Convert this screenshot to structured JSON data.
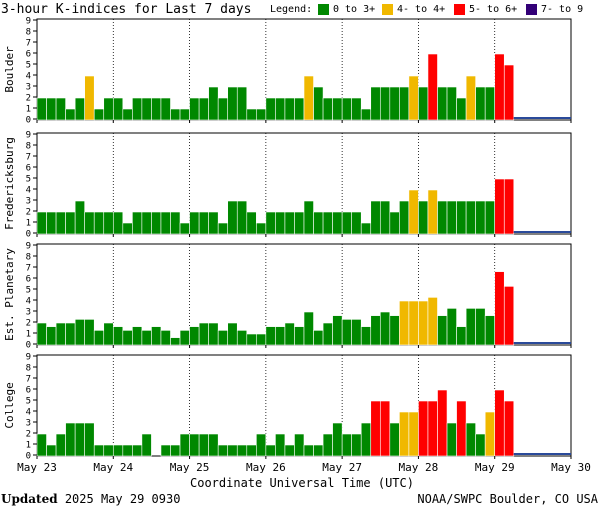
{
  "title": "3-hour K-indices for Last 7 days",
  "legend": {
    "label": "Legend:",
    "items": [
      {
        "label": "0 to 3+",
        "color": "#008800"
      },
      {
        "label": "4- to 4+",
        "color": "#f0b800"
      },
      {
        "label": "5- to 6+",
        "color": "#ff0000"
      },
      {
        "label": "7- to 9",
        "color": "#330077"
      }
    ]
  },
  "x_axis_title": "Coordinate Universal Time (UTC)",
  "footer": {
    "updated_label": "Updated",
    "updated_value": "2025 May 29 0930",
    "credit": "NOAA/SWPC Boulder, CO USA"
  },
  "chart_data": [
    {
      "type": "bar",
      "station": "Boulder",
      "ylim": [
        0,
        9
      ],
      "yticks": [
        "0",
        "1",
        "2",
        "3",
        "4",
        "5",
        "6",
        "7",
        "8",
        "9"
      ],
      "xticks": [
        "May 23",
        "May 24",
        "May 25",
        "May 26",
        "May 27",
        "May 28",
        "May 29",
        "May 30"
      ],
      "values": [
        2,
        2,
        2,
        1,
        2,
        4,
        1,
        2,
        2,
        1,
        2,
        2,
        2,
        2,
        1,
        1,
        2,
        2,
        3,
        2,
        3,
        3,
        1,
        1,
        2,
        2,
        2,
        2,
        4,
        3,
        2,
        2,
        2,
        2,
        1,
        3,
        3,
        3,
        3,
        4,
        3,
        6,
        3,
        3,
        2,
        4,
        3,
        3,
        6,
        5
      ]
    },
    {
      "type": "bar",
      "station": "Fredericksburg",
      "ylim": [
        0,
        9
      ],
      "yticks": [
        "0",
        "1",
        "2",
        "3",
        "4",
        "5",
        "6",
        "7",
        "8",
        "9"
      ],
      "xticks": [
        "May 23",
        "May 24",
        "May 25",
        "May 26",
        "May 27",
        "May 28",
        "May 29",
        "May 30"
      ],
      "values": [
        2,
        2,
        2,
        2,
        3,
        2,
        2,
        2,
        2,
        1,
        2,
        2,
        2,
        2,
        2,
        1,
        2,
        2,
        2,
        1,
        3,
        3,
        2,
        1,
        2,
        2,
        2,
        2,
        3,
        2,
        2,
        2,
        2,
        2,
        1,
        3,
        3,
        2,
        3,
        4,
        3,
        4,
        3,
        3,
        3,
        3,
        3,
        3,
        5,
        5
      ]
    },
    {
      "type": "bar",
      "station": "Est. Planetary",
      "ylim": [
        0,
        9
      ],
      "yticks": [
        "0",
        "1",
        "2",
        "3",
        "4",
        "5",
        "6",
        "7",
        "8",
        "9"
      ],
      "xticks": [
        "May 23",
        "May 24",
        "May 25",
        "May 26",
        "May 27",
        "May 28",
        "May 29",
        "May 30"
      ],
      "values": [
        2,
        1.67,
        2,
        2,
        2.33,
        2.33,
        1.33,
        2,
        1.67,
        1.33,
        1.67,
        1.33,
        1.67,
        1.33,
        0.67,
        1.33,
        1.67,
        2,
        2,
        1.33,
        2,
        1.33,
        1,
        1,
        1.67,
        1.67,
        2,
        1.67,
        3,
        1.33,
        2,
        2.67,
        2.33,
        2.33,
        1.67,
        2.67,
        3,
        2.67,
        4,
        4,
        4,
        4.33,
        2.67,
        3.33,
        1.67,
        3.33,
        3.33,
        2.67,
        6.67,
        5.33
      ]
    },
    {
      "type": "bar",
      "station": "College",
      "ylim": [
        0,
        9
      ],
      "yticks": [
        "0",
        "1",
        "2",
        "3",
        "4",
        "5",
        "6",
        "7",
        "8",
        "9"
      ],
      "xticks": [
        "May 23",
        "May 24",
        "May 25",
        "May 26",
        "May 27",
        "May 28",
        "May 29",
        "May 30"
      ],
      "values": [
        2,
        1,
        2,
        3,
        3,
        3,
        1,
        1,
        1,
        1,
        1,
        2,
        0,
        1,
        1,
        2,
        2,
        2,
        2,
        1,
        1,
        1,
        1,
        2,
        1,
        2,
        1,
        2,
        1,
        1,
        2,
        3,
        2,
        2,
        3,
        5,
        5,
        3,
        4,
        4,
        5,
        5,
        6,
        3,
        5,
        3,
        2,
        4,
        6,
        5
      ]
    }
  ]
}
